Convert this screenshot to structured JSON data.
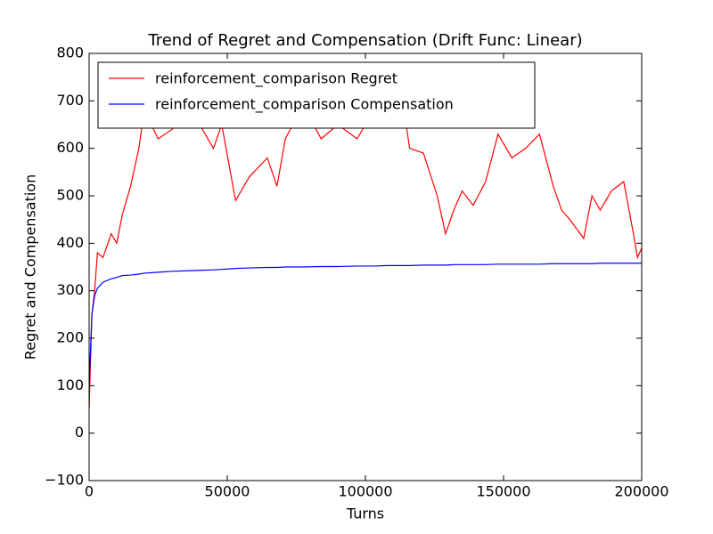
{
  "chart_data": {
    "type": "line",
    "title": "Trend of Regret and Compensation (Drift Func: Linear)",
    "x_label": "Turns",
    "y_label": "Regret and Compensation",
    "x": [
      0,
      1000,
      2000,
      3000,
      5000,
      8000,
      10000,
      12000,
      15000,
      18000,
      20000,
      25000,
      30000,
      35000,
      40000,
      45000,
      48000,
      53000,
      58000,
      64500,
      68000,
      71000,
      77400,
      84000,
      90000,
      97000,
      103000,
      108000,
      113000,
      116000,
      121000,
      126000,
      129000,
      132000,
      135000,
      139000,
      143500,
      148000,
      153000,
      158000,
      163000,
      168000,
      171000,
      174000,
      179000,
      182000,
      185000,
      189000,
      193500,
      197000,
      198500,
      200000
    ],
    "series": [
      {
        "name": "reinforcement_comparison Regret",
        "color": "#ff0000",
        "values": [
          50,
          250,
          300,
          380,
          370,
          420,
          400,
          460,
          520,
          600,
          680,
          620,
          640,
          670,
          650,
          600,
          650,
          490,
          540,
          580,
          520,
          620,
          690,
          620,
          650,
          620,
          680,
          700,
          720,
          600,
          590,
          500,
          420,
          470,
          510,
          480,
          530,
          630,
          580,
          600,
          630,
          520,
          470,
          450,
          410,
          500,
          470,
          510,
          530,
          420,
          370,
          390
        ]
      },
      {
        "name": "reinforcement_comparison Compensation",
        "color": "#0000ff",
        "values": [
          100,
          250,
          290,
          305,
          318,
          325,
          328,
          332,
          333,
          335,
          337,
          339,
          341,
          342,
          343,
          344,
          345,
          347,
          348,
          349,
          349,
          350,
          350,
          351,
          351,
          352,
          352,
          353,
          353,
          353,
          354,
          354,
          354,
          355,
          355,
          355,
          355,
          356,
          356,
          356,
          356,
          357,
          357,
          357,
          357,
          357,
          358,
          358,
          358,
          358,
          358,
          358
        ]
      }
    ],
    "xlim": [
      0,
      200000
    ],
    "ylim": [
      -100,
      800
    ],
    "xticks": [
      0,
      50000,
      100000,
      150000,
      200000
    ],
    "yticks": [
      {
        "value": -100,
        "label": "−100"
      },
      0,
      100,
      200,
      300,
      400,
      500,
      600,
      700,
      800
    ],
    "legend": "upper left",
    "grid": false
  }
}
